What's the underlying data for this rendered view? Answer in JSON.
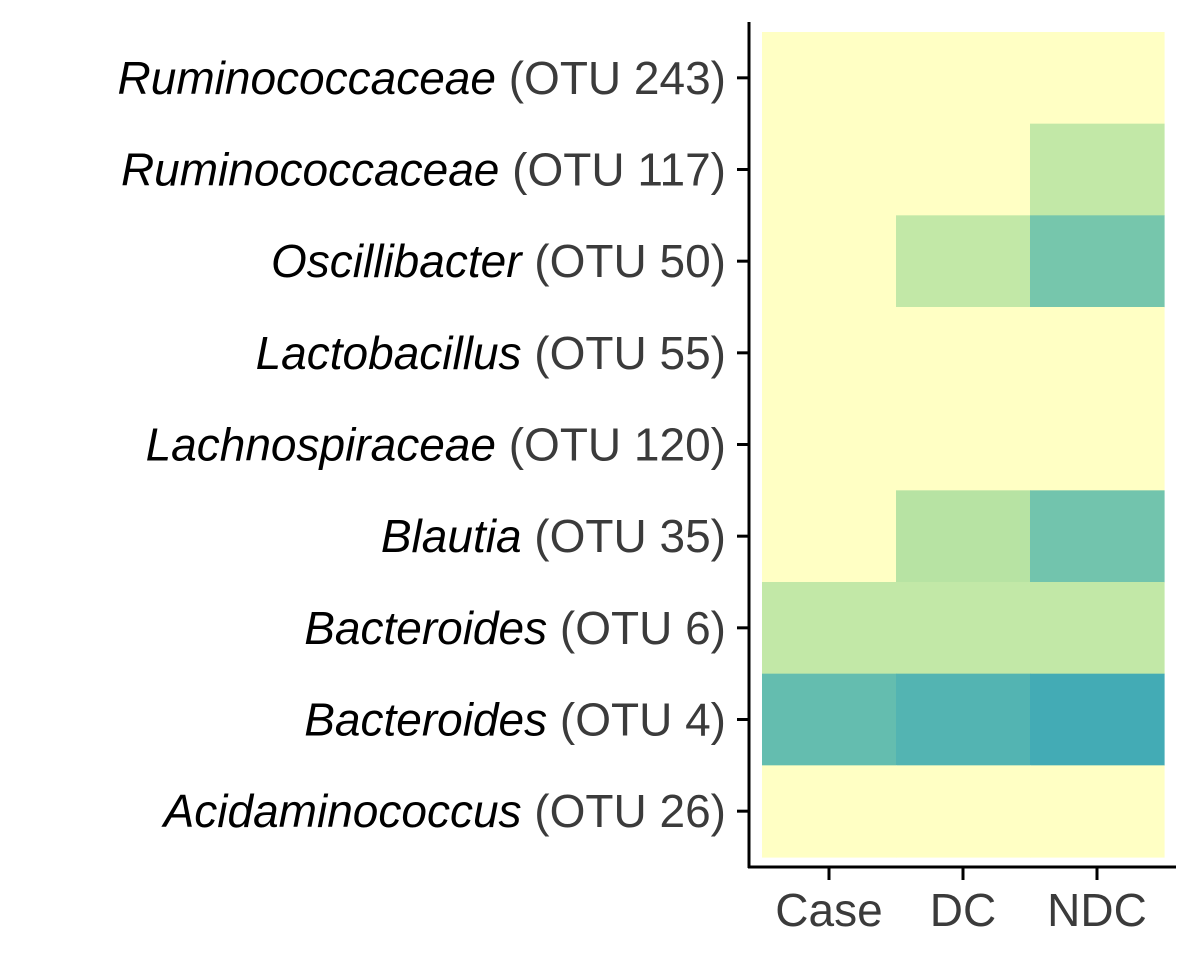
{
  "chart_data": {
    "type": "heatmap",
    "x": [
      "Case",
      "DC",
      "NDC"
    ],
    "y": [
      {
        "taxon": "Ruminococcaceae",
        "otu": "(OTU 243)"
      },
      {
        "taxon": "Ruminococcaceae",
        "otu": "(OTU 117)"
      },
      {
        "taxon": "Oscillibacter",
        "otu": "(OTU 50)"
      },
      {
        "taxon": "Lactobacillus",
        "otu": "(OTU 55)"
      },
      {
        "taxon": "Lachnospiraceae",
        "otu": "(OTU 120)"
      },
      {
        "taxon": "Blautia",
        "otu": "(OTU 35)"
      },
      {
        "taxon": "Bacteroides",
        "otu": "(OTU 6)"
      },
      {
        "taxon": "Bacteroides",
        "otu": "(OTU 4)"
      },
      {
        "taxon": "Acidaminococcus",
        "otu": "(OTU 26)"
      }
    ],
    "values": [
      [
        0.0,
        0.0,
        0.0
      ],
      [
        0.0,
        0.0,
        0.22
      ],
      [
        0.0,
        0.22,
        0.52
      ],
      [
        0.0,
        0.0,
        0.0
      ],
      [
        0.0,
        0.0,
        0.0
      ],
      [
        0.0,
        0.28,
        0.56
      ],
      [
        0.22,
        0.22,
        0.22
      ],
      [
        0.62,
        0.68,
        0.76
      ],
      [
        0.0,
        0.0,
        0.0
      ]
    ],
    "color_scale": [
      "#ffffc4",
      "#d0eeab",
      "#b6e3a3",
      "#7ecaab",
      "#71c4ad",
      "#4aafb4",
      "#35a3b8",
      "#2a91b6"
    ],
    "colorbar": false,
    "legend": "none",
    "grid": false
  }
}
